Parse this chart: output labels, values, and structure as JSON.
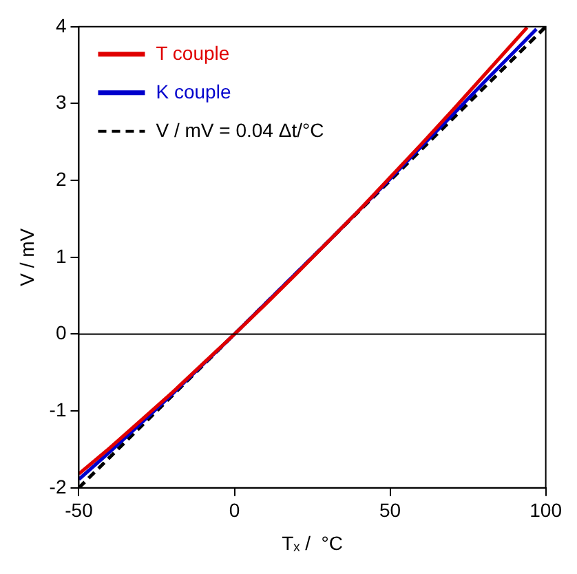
{
  "chart_data": {
    "type": "line",
    "xlabel": "Tₓ /  °C",
    "ylabel": "V / mV",
    "xlim": [
      -50,
      100
    ],
    "xticks": [
      -50,
      0,
      50,
      100
    ],
    "ylim": [
      -2,
      4
    ],
    "yticks": [
      -2,
      -1,
      0,
      1,
      2,
      3,
      4
    ],
    "legend": "top left",
    "grid": false,
    "series": [
      {
        "name": "T couple",
        "color": "#e00000",
        "x": [
          -50,
          -40,
          -30,
          -20,
          -10,
          0,
          10,
          20,
          30,
          40,
          50,
          60,
          70,
          80,
          90,
          94
        ],
        "values": [
          -1.82,
          -1.48,
          -1.12,
          -0.76,
          -0.38,
          0,
          0.39,
          0.79,
          1.2,
          1.61,
          2.04,
          2.47,
          2.91,
          3.36,
          3.81,
          3.99
        ]
      },
      {
        "name": "K couple",
        "color": "#0000cc",
        "x": [
          -50,
          -40,
          -30,
          -20,
          -10,
          0,
          10,
          20,
          30,
          40,
          50,
          60,
          70,
          80,
          90,
          97
        ],
        "values": [
          -1.89,
          -1.53,
          -1.16,
          -0.78,
          -0.39,
          0,
          0.4,
          0.8,
          1.2,
          1.61,
          2.02,
          2.44,
          2.85,
          3.27,
          3.68,
          3.97
        ]
      },
      {
        "name": "V / mV = 0.04 Δt/°C",
        "color": "#000000",
        "line_style": "dashed",
        "x": [
          -50,
          100
        ],
        "values": [
          -2,
          4
        ]
      }
    ],
    "ref_lines": [
      {
        "axis": "y",
        "value": 0,
        "color": "#000000",
        "line_style": "solid"
      }
    ]
  }
}
